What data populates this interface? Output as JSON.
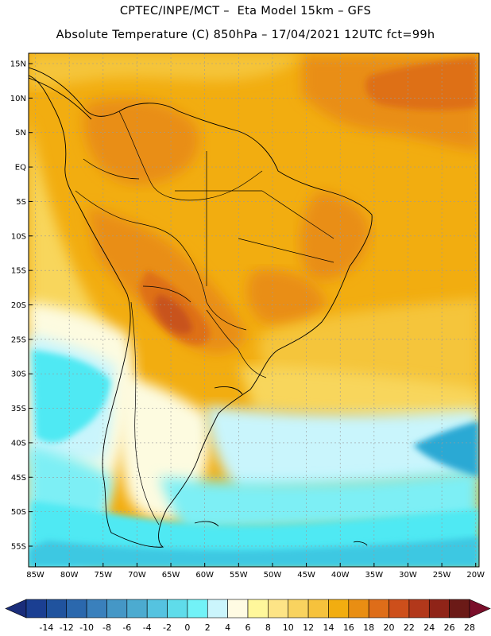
{
  "header": {
    "line1": "CPTEC/INPE/MCT –  Eta Model 15km – GFS",
    "line2": "Absolute Temperature (C) 850hPa – 17/04/2021 12UTC fct=99h"
  },
  "map": {
    "lon_range": [
      -86,
      -19.5
    ],
    "lat_range": [
      -58,
      16.5
    ],
    "lat_ticks": [
      {
        "value": 15,
        "label": "15N"
      },
      {
        "value": 10,
        "label": "10N"
      },
      {
        "value": 5,
        "label": "5N"
      },
      {
        "value": 0,
        "label": "EQ"
      },
      {
        "value": -5,
        "label": "5S"
      },
      {
        "value": -10,
        "label": "10S"
      },
      {
        "value": -15,
        "label": "15S"
      },
      {
        "value": -20,
        "label": "20S"
      },
      {
        "value": -25,
        "label": "25S"
      },
      {
        "value": -30,
        "label": "30S"
      },
      {
        "value": -35,
        "label": "35S"
      },
      {
        "value": -40,
        "label": "40S"
      },
      {
        "value": -45,
        "label": "45S"
      },
      {
        "value": -50,
        "label": "50S"
      },
      {
        "value": -55,
        "label": "55S"
      }
    ],
    "lon_ticks": [
      {
        "value": -85,
        "label": "85W"
      },
      {
        "value": -80,
        "label": "80W"
      },
      {
        "value": -75,
        "label": "75W"
      },
      {
        "value": -70,
        "label": "70W"
      },
      {
        "value": -65,
        "label": "65W"
      },
      {
        "value": -60,
        "label": "60W"
      },
      {
        "value": -55,
        "label": "55W"
      },
      {
        "value": -50,
        "label": "50W"
      },
      {
        "value": -45,
        "label": "45W"
      },
      {
        "value": -40,
        "label": "40W"
      },
      {
        "value": -35,
        "label": "35W"
      },
      {
        "value": -30,
        "label": "30W"
      },
      {
        "value": -25,
        "label": "25W"
      },
      {
        "value": -20,
        "label": "20W"
      }
    ],
    "colors": {
      "t10": "#fdfbe0",
      "t12": "#fde986",
      "t14": "#f8d65c",
      "t16": "#f5c53b",
      "t18": "#f2ad10",
      "t20": "#e98e13",
      "t22": "#de7018",
      "t24": "#c8531b",
      "t4": "#4fe9f3",
      "t6": "#7deff5",
      "t8": "#c9f5fc",
      "t2": "#3cc8e2",
      "t0": "#2aa9d4"
    }
  },
  "colorbar": {
    "labels": [
      "-14",
      "-12",
      "-10",
      "-8",
      "-6",
      "-4",
      "-2",
      "0",
      "2",
      "4",
      "6",
      "8",
      "10",
      "12",
      "14",
      "16",
      "18",
      "20",
      "22",
      "24",
      "26",
      "28"
    ],
    "colors": [
      "#1b3f92",
      "#20539e",
      "#2b68ad",
      "#3a80bc",
      "#4597c6",
      "#4cabd0",
      "#55c3e0",
      "#5fdcea",
      "#72f2f7",
      "#cbf5fc",
      "#fffbe3",
      "#fff79b",
      "#fde486",
      "#f9d35f",
      "#f6c23c",
      "#f2ad10",
      "#e98e13",
      "#de6d19",
      "#cd4f1b",
      "#b2381b",
      "#8f2418",
      "#6b1a17"
    ],
    "low_color": "#1a2d7a",
    "high_color": "#7a0e2a"
  }
}
